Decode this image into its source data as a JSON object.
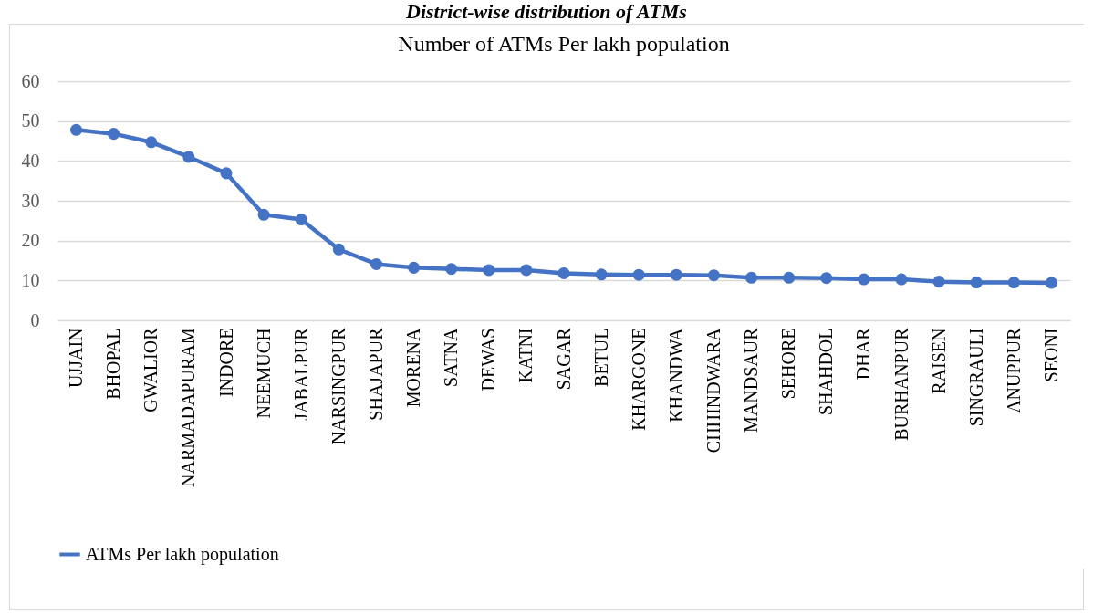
{
  "chart_data": {
    "type": "line",
    "title": "Number of ATMs Per lakh population",
    "annotations": [
      "District-wise distribution of ATMs"
    ],
    "categories": [
      "UJJAIN",
      "BHOPAL",
      "GWALIOR",
      "NARMADAPURAM",
      "INDORE",
      "NEEMUCH",
      "JABALPUR",
      "NARSINGPUR",
      "SHAJAPUR",
      "MORENA",
      "SATNA",
      "DEWAS",
      "KATNI",
      "SAGAR",
      "BETUL",
      "KHARGONE",
      "KHANDWA",
      "CHHINDWARA",
      "MANDSAUR",
      "SEHORE",
      "SHAHDOL",
      "DHAR",
      "BURHANPUR",
      "RAISEN",
      "SINGRAULI",
      "ANUPPUR",
      "SEONI"
    ],
    "series": [
      {
        "name": "ATMs Per lakh population",
        "color": "#4472c4",
        "values": [
          47.8,
          46.8,
          44.7,
          41.0,
          36.9,
          26.5,
          25.3,
          17.8,
          14.1,
          13.2,
          12.9,
          12.6,
          12.6,
          11.8,
          11.5,
          11.4,
          11.4,
          11.3,
          10.7,
          10.7,
          10.6,
          10.3,
          10.3,
          9.7,
          9.5,
          9.5,
          9.4
        ]
      }
    ],
    "ylim": [
      0,
      60
    ],
    "yticks": [
      0,
      10,
      20,
      30,
      40,
      50,
      60
    ],
    "grid": "y",
    "legend": "bottom",
    "marker": "circle",
    "line_style": "solid"
  }
}
